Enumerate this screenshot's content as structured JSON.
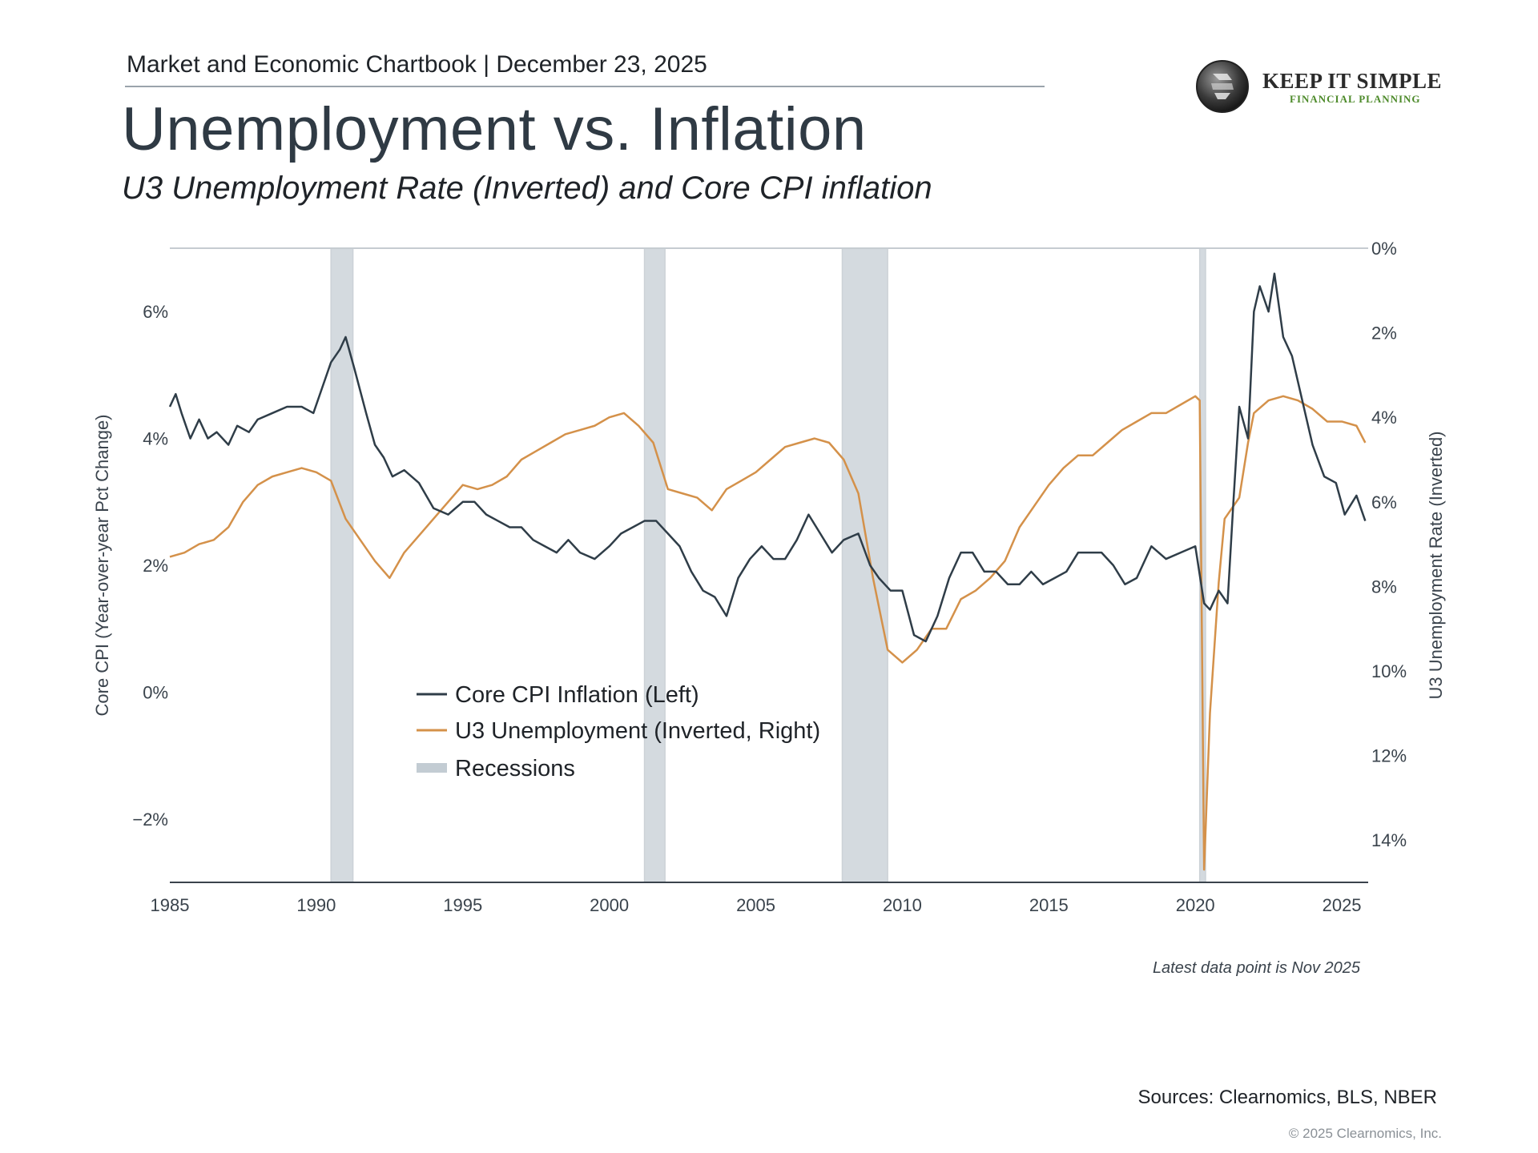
{
  "header": {
    "chartbook_line": "Market and Economic Chartbook | December 23, 2025",
    "brand_line1": "KEEP IT SIMPLE",
    "brand_line2": "FINANCIAL PLANNING"
  },
  "colors": {
    "core_cpi": "#2f3d48",
    "unemployment": "#d4914a",
    "recession": "#aab6c0"
  },
  "chart_data": {
    "type": "line",
    "title": "Unemployment vs. Inflation",
    "subtitle": "U3 Unemployment Rate (Inverted) and Core CPI inflation",
    "xlabel": "",
    "ylabel_left": "Core CPI (Year-over-year Pct Change)",
    "ylabel_right": "U3 Unemployment Rate (Inverted)",
    "xlim": [
      1985,
      2025.9
    ],
    "ylim_left": [
      -3,
      7
    ],
    "ylim_right": [
      15,
      0
    ],
    "x_ticks": [
      "1985",
      "1990",
      "1995",
      "2000",
      "2005",
      "2010",
      "2015",
      "2020",
      "2025"
    ],
    "y_ticks_left": [
      "6%",
      "4%",
      "2%",
      "0%",
      "−2%"
    ],
    "y_ticks_right": [
      "0%",
      "2%",
      "4%",
      "6%",
      "8%",
      "10%",
      "12%",
      "14%"
    ],
    "legend_placement": "lower-center",
    "grid": false,
    "recessions": [
      [
        1990.5,
        1991.25
      ],
      [
        2001.2,
        2001.9
      ],
      [
        2007.95,
        2009.5
      ],
      [
        2020.15,
        2020.35
      ]
    ],
    "series": [
      {
        "name": "Core CPI Inflation (Left)",
        "axis": "left",
        "points": [
          [
            1985.0,
            4.5
          ],
          [
            1985.2,
            4.7
          ],
          [
            1985.4,
            4.4
          ],
          [
            1985.7,
            4.0
          ],
          [
            1986.0,
            4.3
          ],
          [
            1986.3,
            4.0
          ],
          [
            1986.6,
            4.1
          ],
          [
            1987.0,
            3.9
          ],
          [
            1987.3,
            4.2
          ],
          [
            1987.7,
            4.1
          ],
          [
            1988.0,
            4.3
          ],
          [
            1988.5,
            4.4
          ],
          [
            1989.0,
            4.5
          ],
          [
            1989.5,
            4.5
          ],
          [
            1989.9,
            4.4
          ],
          [
            1990.2,
            4.8
          ],
          [
            1990.5,
            5.2
          ],
          [
            1990.8,
            5.4
          ],
          [
            1991.0,
            5.6
          ],
          [
            1991.3,
            5.1
          ],
          [
            1991.7,
            4.4
          ],
          [
            1992.0,
            3.9
          ],
          [
            1992.3,
            3.7
          ],
          [
            1992.6,
            3.4
          ],
          [
            1993.0,
            3.5
          ],
          [
            1993.5,
            3.3
          ],
          [
            1994.0,
            2.9
          ],
          [
            1994.5,
            2.8
          ],
          [
            1995.0,
            3.0
          ],
          [
            1995.4,
            3.0
          ],
          [
            1995.8,
            2.8
          ],
          [
            1996.2,
            2.7
          ],
          [
            1996.6,
            2.6
          ],
          [
            1997.0,
            2.6
          ],
          [
            1997.4,
            2.4
          ],
          [
            1997.8,
            2.3
          ],
          [
            1998.2,
            2.2
          ],
          [
            1998.6,
            2.4
          ],
          [
            1999.0,
            2.2
          ],
          [
            1999.5,
            2.1
          ],
          [
            2000.0,
            2.3
          ],
          [
            2000.4,
            2.5
          ],
          [
            2000.8,
            2.6
          ],
          [
            2001.2,
            2.7
          ],
          [
            2001.6,
            2.7
          ],
          [
            2002.0,
            2.5
          ],
          [
            2002.4,
            2.3
          ],
          [
            2002.8,
            1.9
          ],
          [
            2003.2,
            1.6
          ],
          [
            2003.6,
            1.5
          ],
          [
            2004.0,
            1.2
          ],
          [
            2004.4,
            1.8
          ],
          [
            2004.8,
            2.1
          ],
          [
            2005.2,
            2.3
          ],
          [
            2005.6,
            2.1
          ],
          [
            2006.0,
            2.1
          ],
          [
            2006.4,
            2.4
          ],
          [
            2006.8,
            2.8
          ],
          [
            2007.2,
            2.5
          ],
          [
            2007.6,
            2.2
          ],
          [
            2008.0,
            2.4
          ],
          [
            2008.5,
            2.5
          ],
          [
            2008.9,
            2.0
          ],
          [
            2009.2,
            1.8
          ],
          [
            2009.6,
            1.6
          ],
          [
            2010.0,
            1.6
          ],
          [
            2010.4,
            0.9
          ],
          [
            2010.8,
            0.8
          ],
          [
            2011.2,
            1.2
          ],
          [
            2011.6,
            1.8
          ],
          [
            2012.0,
            2.2
          ],
          [
            2012.4,
            2.2
          ],
          [
            2012.8,
            1.9
          ],
          [
            2013.2,
            1.9
          ],
          [
            2013.6,
            1.7
          ],
          [
            2014.0,
            1.7
          ],
          [
            2014.4,
            1.9
          ],
          [
            2014.8,
            1.7
          ],
          [
            2015.2,
            1.8
          ],
          [
            2015.6,
            1.9
          ],
          [
            2016.0,
            2.2
          ],
          [
            2016.4,
            2.2
          ],
          [
            2016.8,
            2.2
          ],
          [
            2017.2,
            2.0
          ],
          [
            2017.6,
            1.7
          ],
          [
            2018.0,
            1.8
          ],
          [
            2018.5,
            2.3
          ],
          [
            2019.0,
            2.1
          ],
          [
            2019.5,
            2.2
          ],
          [
            2020.0,
            2.3
          ],
          [
            2020.3,
            1.4
          ],
          [
            2020.5,
            1.3
          ],
          [
            2020.8,
            1.6
          ],
          [
            2021.1,
            1.4
          ],
          [
            2021.3,
            3.0
          ],
          [
            2021.5,
            4.5
          ],
          [
            2021.8,
            4.0
          ],
          [
            2022.0,
            6.0
          ],
          [
            2022.2,
            6.4
          ],
          [
            2022.5,
            6.0
          ],
          [
            2022.7,
            6.6
          ],
          [
            2023.0,
            5.6
          ],
          [
            2023.3,
            5.3
          ],
          [
            2023.6,
            4.7
          ],
          [
            2024.0,
            3.9
          ],
          [
            2024.4,
            3.4
          ],
          [
            2024.8,
            3.3
          ],
          [
            2025.1,
            2.8
          ],
          [
            2025.5,
            3.1
          ],
          [
            2025.8,
            2.7
          ]
        ]
      },
      {
        "name": "U3 Unemployment (Inverted, Right)",
        "axis": "right",
        "points": [
          [
            1985.0,
            7.3
          ],
          [
            1985.5,
            7.2
          ],
          [
            1986.0,
            7.0
          ],
          [
            1986.5,
            6.9
          ],
          [
            1987.0,
            6.6
          ],
          [
            1987.5,
            6.0
          ],
          [
            1988.0,
            5.6
          ],
          [
            1988.5,
            5.4
          ],
          [
            1989.0,
            5.3
          ],
          [
            1989.5,
            5.2
          ],
          [
            1990.0,
            5.3
          ],
          [
            1990.5,
            5.5
          ],
          [
            1991.0,
            6.4
          ],
          [
            1991.5,
            6.9
          ],
          [
            1992.0,
            7.4
          ],
          [
            1992.5,
            7.8
          ],
          [
            1993.0,
            7.2
          ],
          [
            1993.5,
            6.8
          ],
          [
            1994.0,
            6.4
          ],
          [
            1994.5,
            6.0
          ],
          [
            1995.0,
            5.6
          ],
          [
            1995.5,
            5.7
          ],
          [
            1996.0,
            5.6
          ],
          [
            1996.5,
            5.4
          ],
          [
            1997.0,
            5.0
          ],
          [
            1997.5,
            4.8
          ],
          [
            1998.0,
            4.6
          ],
          [
            1998.5,
            4.4
          ],
          [
            1999.0,
            4.3
          ],
          [
            1999.5,
            4.2
          ],
          [
            2000.0,
            4.0
          ],
          [
            2000.5,
            3.9
          ],
          [
            2001.0,
            4.2
          ],
          [
            2001.5,
            4.6
          ],
          [
            2002.0,
            5.7
          ],
          [
            2002.5,
            5.8
          ],
          [
            2003.0,
            5.9
          ],
          [
            2003.5,
            6.2
          ],
          [
            2004.0,
            5.7
          ],
          [
            2004.5,
            5.5
          ],
          [
            2005.0,
            5.3
          ],
          [
            2005.5,
            5.0
          ],
          [
            2006.0,
            4.7
          ],
          [
            2006.5,
            4.6
          ],
          [
            2007.0,
            4.5
          ],
          [
            2007.5,
            4.6
          ],
          [
            2008.0,
            5.0
          ],
          [
            2008.5,
            5.8
          ],
          [
            2009.0,
            7.8
          ],
          [
            2009.5,
            9.5
          ],
          [
            2010.0,
            9.8
          ],
          [
            2010.5,
            9.5
          ],
          [
            2011.0,
            9.0
          ],
          [
            2011.5,
            9.0
          ],
          [
            2012.0,
            8.3
          ],
          [
            2012.5,
            8.1
          ],
          [
            2013.0,
            7.8
          ],
          [
            2013.5,
            7.4
          ],
          [
            2014.0,
            6.6
          ],
          [
            2014.5,
            6.1
          ],
          [
            2015.0,
            5.6
          ],
          [
            2015.5,
            5.2
          ],
          [
            2016.0,
            4.9
          ],
          [
            2016.5,
            4.9
          ],
          [
            2017.0,
            4.6
          ],
          [
            2017.5,
            4.3
          ],
          [
            2018.0,
            4.1
          ],
          [
            2018.5,
            3.9
          ],
          [
            2019.0,
            3.9
          ],
          [
            2019.5,
            3.7
          ],
          [
            2020.0,
            3.5
          ],
          [
            2020.15,
            3.6
          ],
          [
            2020.3,
            14.7
          ],
          [
            2020.5,
            11.0
          ],
          [
            2020.8,
            7.9
          ],
          [
            2021.0,
            6.4
          ],
          [
            2021.5,
            5.9
          ],
          [
            2021.8,
            4.6
          ],
          [
            2022.0,
            3.9
          ],
          [
            2022.5,
            3.6
          ],
          [
            2023.0,
            3.5
          ],
          [
            2023.5,
            3.6
          ],
          [
            2024.0,
            3.8
          ],
          [
            2024.5,
            4.1
          ],
          [
            2025.0,
            4.1
          ],
          [
            2025.5,
            4.2
          ],
          [
            2025.8,
            4.6
          ]
        ]
      }
    ],
    "legend": [
      {
        "label": "Core CPI Inflation (Left)",
        "key": "core"
      },
      {
        "label": "U3 Unemployment (Inverted, Right)",
        "key": "u3"
      },
      {
        "label": "Recessions",
        "key": "recession"
      }
    ],
    "note": "Latest data point is Nov 2025"
  },
  "footer": {
    "sources": "Sources: Clearnomics, BLS, NBER",
    "copyright": "© 2025 Clearnomics, Inc."
  }
}
